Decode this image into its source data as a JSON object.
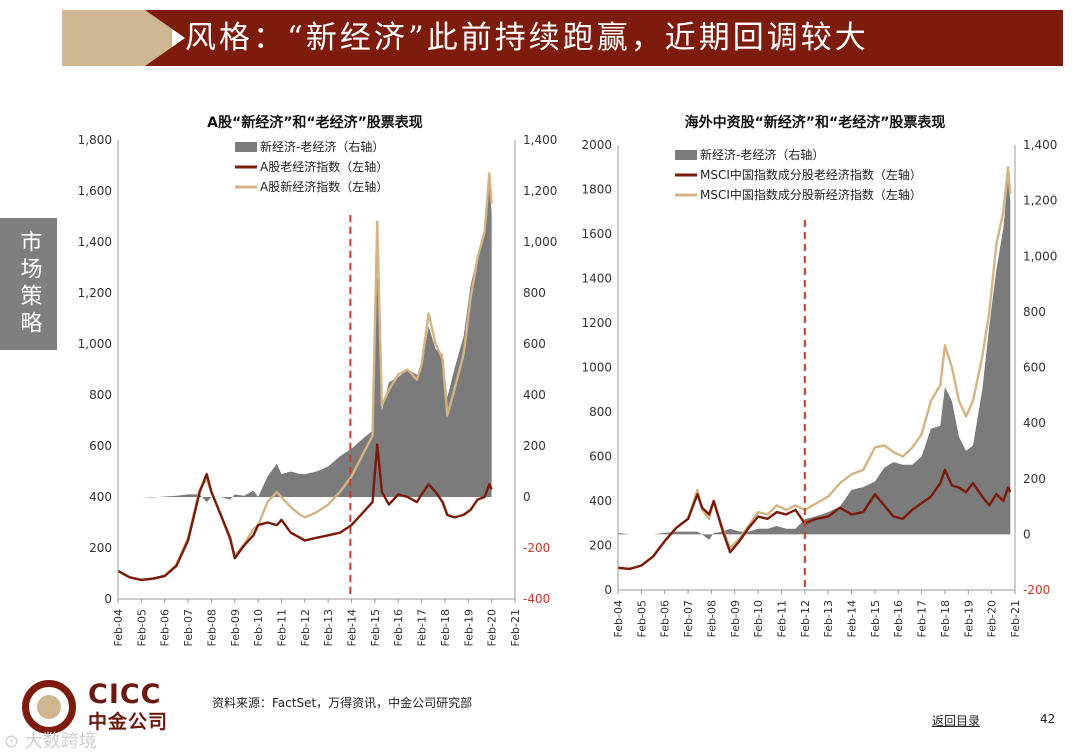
{
  "slide": {
    "title": "风格：“新经济”此前持续跑赢，近期回调较大",
    "side_tab": "市场策略",
    "source": "资料来源：FactSet，万得资讯，中金公司研究部",
    "back_link": "返回目录",
    "page_number": "42",
    "logo_en": "CICC",
    "logo_cn": "中金公司",
    "watermark": "⊙ 大数跨境"
  },
  "colors": {
    "banner": "#7d1b0d",
    "accent_tan": "#cdb691",
    "area": "#7b7b7b",
    "old_line": "#7a1a0a",
    "new_line": "#d4b485",
    "marker": "#d13a2c"
  },
  "chart_data": [
    {
      "type": "line+area",
      "title": "A股“新经济”和“老经济”股票表现",
      "x_labels": [
        "Feb-04",
        "Feb-05",
        "Feb-06",
        "Feb-07",
        "Feb-08",
        "Feb-09",
        "Feb-10",
        "Feb-11",
        "Feb-12",
        "Feb-13",
        "Feb-14",
        "Feb-15",
        "Feb-16",
        "Feb-17",
        "Feb-18",
        "Feb-19",
        "Feb-20",
        "Feb-21"
      ],
      "y_left": {
        "range": [
          0,
          1800
        ],
        "ticks": [
          0,
          200,
          400,
          600,
          800,
          1000,
          1200,
          1400,
          1600,
          1800
        ],
        "tick_labels": [
          "0",
          "200",
          "400",
          "600",
          "800",
          "1,000",
          "1,200",
          "1,400",
          "1,600",
          "1,800"
        ]
      },
      "y_right": {
        "range": [
          -400,
          1400
        ],
        "ticks": [
          -400,
          -200,
          0,
          200,
          400,
          600,
          800,
          1000,
          1200,
          1400
        ],
        "tick_labels": [
          "-400",
          "-200",
          "0",
          "200",
          "400",
          "600",
          "800",
          "1,000",
          "1,200",
          "1,400"
        ]
      },
      "vline_at_year": 9.95,
      "legend": [
        "新经济-老经济（右轴）",
        "A股老经济指数（左轴）",
        "A股新经济指数（左轴）"
      ],
      "series_new_left": [
        [
          0,
          110
        ],
        [
          0.5,
          85
        ],
        [
          1,
          75
        ],
        [
          1.5,
          78
        ],
        [
          2,
          92
        ],
        [
          2.5,
          135
        ],
        [
          3,
          240
        ],
        [
          3.5,
          430
        ],
        [
          3.8,
          470
        ],
        [
          4,
          420
        ],
        [
          4.4,
          330
        ],
        [
          4.8,
          230
        ],
        [
          5,
          170
        ],
        [
          5.4,
          215
        ],
        [
          5.8,
          275
        ],
        [
          6,
          290
        ],
        [
          6.4,
          380
        ],
        [
          6.8,
          420
        ],
        [
          7,
          400
        ],
        [
          7.4,
          360
        ],
        [
          7.8,
          330
        ],
        [
          8,
          320
        ],
        [
          8.5,
          340
        ],
        [
          9,
          370
        ],
        [
          9.5,
          420
        ],
        [
          10,
          480
        ],
        [
          10.5,
          570
        ],
        [
          10.9,
          640
        ],
        [
          11.1,
          1480
        ],
        [
          11.3,
          760
        ],
        [
          11.6,
          820
        ],
        [
          12,
          880
        ],
        [
          12.4,
          900
        ],
        [
          12.8,
          860
        ],
        [
          13,
          920
        ],
        [
          13.3,
          1120
        ],
        [
          13.6,
          1000
        ],
        [
          13.9,
          940
        ],
        [
          14.1,
          720
        ],
        [
          14.4,
          820
        ],
        [
          14.8,
          960
        ],
        [
          15.1,
          1180
        ],
        [
          15.4,
          1340
        ],
        [
          15.7,
          1440
        ],
        [
          15.9,
          1670
        ],
        [
          16,
          1550
        ]
      ],
      "series_old_left": [
        [
          0,
          110
        ],
        [
          0.5,
          85
        ],
        [
          1,
          75
        ],
        [
          1.5,
          80
        ],
        [
          2,
          90
        ],
        [
          2.5,
          130
        ],
        [
          3,
          230
        ],
        [
          3.5,
          420
        ],
        [
          3.8,
          490
        ],
        [
          4,
          420
        ],
        [
          4.4,
          330
        ],
        [
          4.8,
          240
        ],
        [
          5,
          160
        ],
        [
          5.4,
          210
        ],
        [
          5.8,
          250
        ],
        [
          6,
          290
        ],
        [
          6.4,
          300
        ],
        [
          6.8,
          290
        ],
        [
          7,
          310
        ],
        [
          7.4,
          260
        ],
        [
          7.8,
          240
        ],
        [
          8,
          230
        ],
        [
          8.5,
          240
        ],
        [
          9,
          250
        ],
        [
          9.5,
          260
        ],
        [
          10,
          290
        ],
        [
          10.5,
          340
        ],
        [
          10.9,
          380
        ],
        [
          11.1,
          605
        ],
        [
          11.3,
          420
        ],
        [
          11.6,
          370
        ],
        [
          12,
          410
        ],
        [
          12.4,
          400
        ],
        [
          12.8,
          380
        ],
        [
          13,
          410
        ],
        [
          13.3,
          450
        ],
        [
          13.6,
          420
        ],
        [
          13.9,
          380
        ],
        [
          14.1,
          330
        ],
        [
          14.4,
          320
        ],
        [
          14.8,
          330
        ],
        [
          15.1,
          350
        ],
        [
          15.4,
          390
        ],
        [
          15.7,
          400
        ],
        [
          15.9,
          450
        ],
        [
          16,
          430
        ]
      ],
      "series_diff_right": [
        [
          0,
          0
        ],
        [
          0.5,
          0
        ],
        [
          1,
          0
        ],
        [
          1.5,
          -2
        ],
        [
          2,
          2
        ],
        [
          2.5,
          5
        ],
        [
          3,
          10
        ],
        [
          3.5,
          10
        ],
        [
          3.8,
          -20
        ],
        [
          4,
          0
        ],
        [
          4.4,
          0
        ],
        [
          4.8,
          -10
        ],
        [
          5,
          10
        ],
        [
          5.4,
          5
        ],
        [
          5.8,
          25
        ],
        [
          6,
          0
        ],
        [
          6.4,
          80
        ],
        [
          6.8,
          130
        ],
        [
          7,
          90
        ],
        [
          7.4,
          100
        ],
        [
          7.8,
          90
        ],
        [
          8,
          90
        ],
        [
          8.5,
          100
        ],
        [
          9,
          120
        ],
        [
          9.5,
          160
        ],
        [
          10,
          190
        ],
        [
          10.5,
          230
        ],
        [
          10.9,
          260
        ],
        [
          11.1,
          875
        ],
        [
          11.3,
          340
        ],
        [
          11.6,
          450
        ],
        [
          12,
          470
        ],
        [
          12.4,
          500
        ],
        [
          12.8,
          480
        ],
        [
          13,
          510
        ],
        [
          13.3,
          670
        ],
        [
          13.6,
          580
        ],
        [
          13.9,
          560
        ],
        [
          14.1,
          390
        ],
        [
          14.4,
          500
        ],
        [
          14.8,
          630
        ],
        [
          15.1,
          830
        ],
        [
          15.4,
          950
        ],
        [
          15.7,
          1040
        ],
        [
          15.9,
          1220
        ],
        [
          16,
          1120
        ]
      ]
    },
    {
      "type": "line+area",
      "title": "海外中资股“新经济”和“老经济”股票表现",
      "x_labels": [
        "Feb-04",
        "Feb-05",
        "Feb-06",
        "Feb-07",
        "Feb-08",
        "Feb-09",
        "Feb-10",
        "Feb-11",
        "Feb-12",
        "Feb-13",
        "Feb-14",
        "Feb-15",
        "Feb-16",
        "Feb-17",
        "Feb-18",
        "Feb-19",
        "Feb-20",
        "Feb-21"
      ],
      "y_left": {
        "range": [
          0,
          2000
        ],
        "ticks": [
          0,
          200,
          400,
          600,
          800,
          1000,
          1200,
          1400,
          1600,
          1800,
          2000
        ],
        "tick_labels": [
          "0",
          "200",
          "400",
          "600",
          "800",
          "1000",
          "1200",
          "1400",
          "1600",
          "1800",
          "2000"
        ]
      },
      "y_right": {
        "range": [
          -200,
          1400
        ],
        "ticks": [
          -200,
          0,
          200,
          400,
          600,
          800,
          1000,
          1200,
          1400
        ],
        "tick_labels": [
          "-200",
          "0",
          "200",
          "400",
          "600",
          "800",
          "1,000",
          "1,200",
          "1,400"
        ]
      },
      "vline_at_year": 8.0,
      "legend": [
        "新经济-老经济（右轴）",
        "MSCI中国指数成分股老经济指数（左轴）",
        "MSCI中国指数成分股新经济指数（左轴）"
      ],
      "series_new_left": [
        [
          0,
          100
        ],
        [
          0.5,
          95
        ],
        [
          1,
          110
        ],
        [
          1.5,
          150
        ],
        [
          2,
          220
        ],
        [
          2.5,
          280
        ],
        [
          3,
          320
        ],
        [
          3.4,
          450
        ],
        [
          3.6,
          360
        ],
        [
          3.9,
          320
        ],
        [
          4.1,
          400
        ],
        [
          4.5,
          270
        ],
        [
          4.8,
          190
        ],
        [
          5.2,
          230
        ],
        [
          5.6,
          290
        ],
        [
          6,
          350
        ],
        [
          6.4,
          340
        ],
        [
          6.8,
          380
        ],
        [
          7.2,
          360
        ],
        [
          7.6,
          380
        ],
        [
          8,
          360
        ],
        [
          8.5,
          390
        ],
        [
          9,
          420
        ],
        [
          9.5,
          480
        ],
        [
          10,
          520
        ],
        [
          10.5,
          540
        ],
        [
          11,
          640
        ],
        [
          11.4,
          650
        ],
        [
          11.8,
          620
        ],
        [
          12.2,
          600
        ],
        [
          12.6,
          640
        ],
        [
          13,
          700
        ],
        [
          13.4,
          850
        ],
        [
          13.8,
          920
        ],
        [
          14,
          1100
        ],
        [
          14.3,
          1000
        ],
        [
          14.6,
          850
        ],
        [
          14.9,
          780
        ],
        [
          15.2,
          850
        ],
        [
          15.6,
          1050
        ],
        [
          15.9,
          1250
        ],
        [
          16.2,
          1550
        ],
        [
          16.5,
          1700
        ],
        [
          16.7,
          1900
        ],
        [
          16.8,
          1780
        ]
      ],
      "series_old_left": [
        [
          0,
          100
        ],
        [
          0.5,
          95
        ],
        [
          1,
          110
        ],
        [
          1.5,
          150
        ],
        [
          2,
          220
        ],
        [
          2.5,
          280
        ],
        [
          3,
          320
        ],
        [
          3.4,
          430
        ],
        [
          3.6,
          370
        ],
        [
          3.9,
          340
        ],
        [
          4.1,
          400
        ],
        [
          4.5,
          260
        ],
        [
          4.8,
          170
        ],
        [
          5.2,
          220
        ],
        [
          5.6,
          280
        ],
        [
          6,
          330
        ],
        [
          6.4,
          320
        ],
        [
          6.8,
          350
        ],
        [
          7.2,
          340
        ],
        [
          7.6,
          360
        ],
        [
          8,
          300
        ],
        [
          8.5,
          320
        ],
        [
          9,
          330
        ],
        [
          9.5,
          370
        ],
        [
          10,
          340
        ],
        [
          10.5,
          350
        ],
        [
          11,
          430
        ],
        [
          11.4,
          380
        ],
        [
          11.8,
          330
        ],
        [
          12.2,
          320
        ],
        [
          12.6,
          360
        ],
        [
          13,
          390
        ],
        [
          13.4,
          420
        ],
        [
          13.8,
          480
        ],
        [
          14,
          540
        ],
        [
          14.3,
          470
        ],
        [
          14.6,
          460
        ],
        [
          14.9,
          440
        ],
        [
          15.2,
          480
        ],
        [
          15.6,
          420
        ],
        [
          15.9,
          380
        ],
        [
          16.2,
          430
        ],
        [
          16.5,
          400
        ],
        [
          16.7,
          460
        ],
        [
          16.8,
          440
        ]
      ],
      "series_diff_right": [
        [
          0,
          5
        ],
        [
          0.5,
          0
        ],
        [
          1,
          0
        ],
        [
          1.5,
          0
        ],
        [
          2,
          5
        ],
        [
          2.5,
          10
        ],
        [
          3,
          10
        ],
        [
          3.4,
          10
        ],
        [
          3.6,
          0
        ],
        [
          3.9,
          -20
        ],
        [
          4.1,
          5
        ],
        [
          4.5,
          10
        ],
        [
          4.8,
          20
        ],
        [
          5.2,
          10
        ],
        [
          5.6,
          10
        ],
        [
          6,
          20
        ],
        [
          6.4,
          20
        ],
        [
          6.8,
          30
        ],
        [
          7.2,
          20
        ],
        [
          7.6,
          20
        ],
        [
          8,
          55
        ],
        [
          8.5,
          65
        ],
        [
          9,
          80
        ],
        [
          9.5,
          100
        ],
        [
          10,
          160
        ],
        [
          10.5,
          170
        ],
        [
          11,
          190
        ],
        [
          11.4,
          240
        ],
        [
          11.8,
          260
        ],
        [
          12.2,
          250
        ],
        [
          12.6,
          250
        ],
        [
          13,
          280
        ],
        [
          13.4,
          380
        ],
        [
          13.8,
          390
        ],
        [
          14,
          530
        ],
        [
          14.3,
          480
        ],
        [
          14.6,
          350
        ],
        [
          14.9,
          300
        ],
        [
          15.2,
          320
        ],
        [
          15.6,
          520
        ],
        [
          15.9,
          750
        ],
        [
          16.2,
          950
        ],
        [
          16.5,
          1100
        ],
        [
          16.7,
          1280
        ],
        [
          16.8,
          1200
        ]
      ]
    }
  ]
}
